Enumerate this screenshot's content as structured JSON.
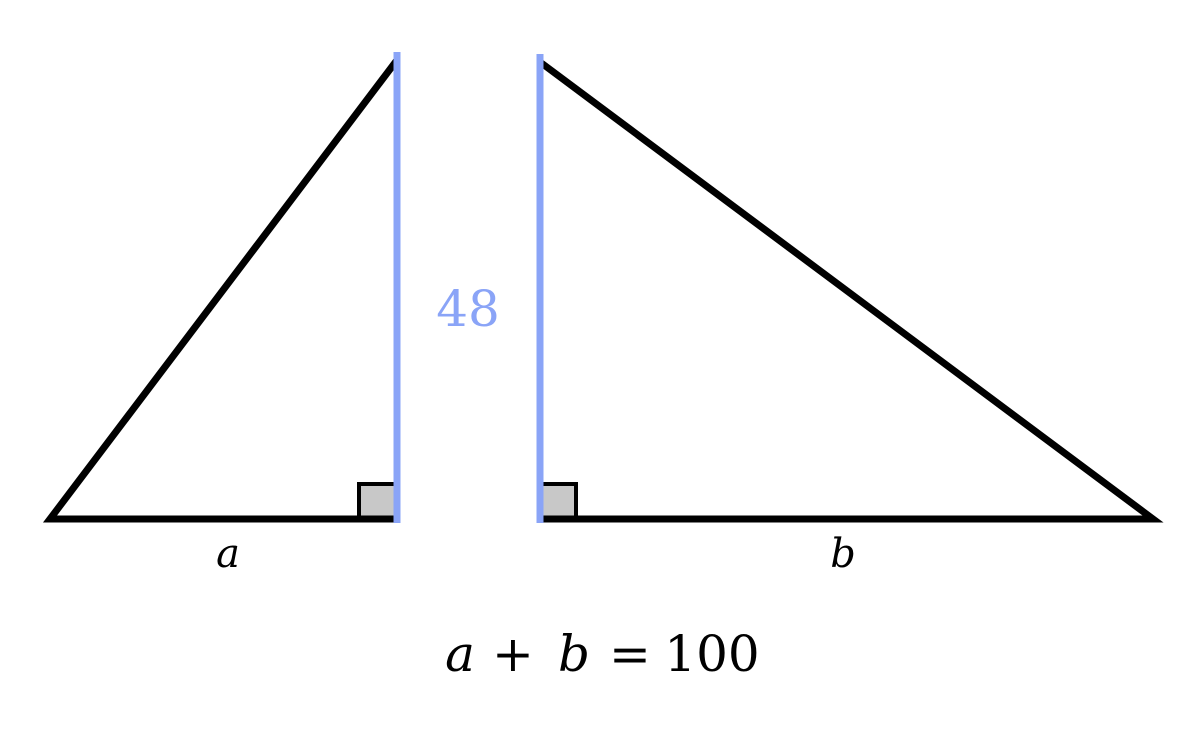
{
  "diagram": {
    "height_label": "48",
    "left_base_label": "a",
    "right_base_label": "b",
    "equation": {
      "var_a": "a",
      "plus": "+",
      "var_b": "b",
      "equals": "=",
      "value": "100"
    }
  },
  "colors": {
    "stroke": "#000000",
    "height": "#8aa4f7",
    "right_angle_fill": "#c8c8c8",
    "background": "#ffffff"
  }
}
